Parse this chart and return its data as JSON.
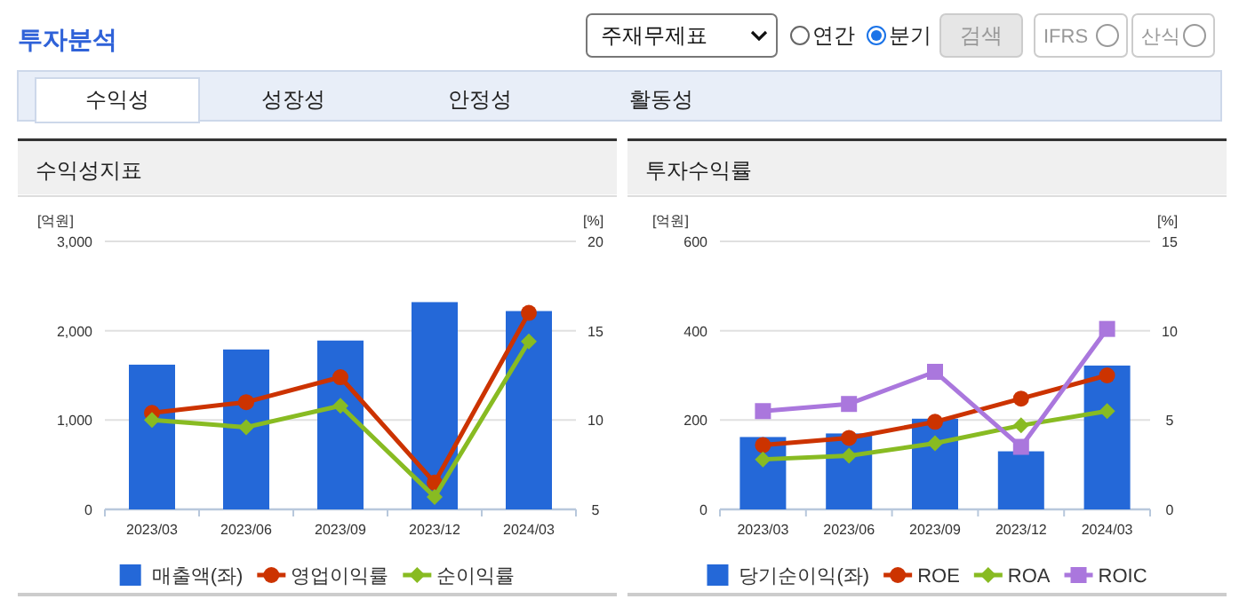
{
  "chart_data": [
    {
      "type": "bar",
      "title": "수익성지표",
      "ylabel": "[억원]",
      "y2label": "[%]",
      "annotations": [
        "투자분석",
        "주재무제표",
        "연간",
        "분기",
        "검색",
        "IFRS",
        "산식",
        "수익성",
        "성장성",
        "안정성",
        "활동성"
      ],
      "categories": [
        "2023/03",
        "2023/06",
        "2023/09",
        "2023/12",
        "2024/03"
      ],
      "ylim": [
        0,
        3000
      ],
      "yticks": [
        0,
        {
          "value": 1000,
          "label": "1,000"
        },
        {
          "value": 2000,
          "label": "2,000"
        },
        {
          "value": 3000,
          "label": "3,000"
        }
      ],
      "y2lim": [
        5,
        20
      ],
      "y2ticks": [
        5,
        10,
        15,
        20
      ],
      "grid": "y",
      "legend": "bottom",
      "series": [
        {
          "name": "매출액(좌)",
          "color": "#2468d8",
          "values": [
            1620,
            1790,
            1890,
            2320,
            2220
          ]
        },
        {
          "name": "영업이익률",
          "type": "line",
          "axis": "y2",
          "marker": "circle",
          "color": "#cc3300",
          "values": [
            10.4,
            11.0,
            12.4,
            6.5,
            16.0
          ]
        },
        {
          "name": "순이익률",
          "type": "line",
          "axis": "y2",
          "marker": "diamond",
          "color": "#88bb22",
          "values": [
            10.0,
            9.6,
            10.8,
            5.7,
            14.4
          ]
        }
      ]
    },
    {
      "type": "bar",
      "title": "투자수익률",
      "ylabel": "[억원]",
      "y2label": "[%]",
      "categories": [
        "2023/03",
        "2023/06",
        "2023/09",
        "2023/12",
        "2024/03"
      ],
      "ylim": [
        0,
        600
      ],
      "yticks": [
        0,
        200,
        400,
        600
      ],
      "y2lim": [
        0,
        15
      ],
      "y2ticks": [
        0,
        5,
        10,
        15
      ],
      "grid": "y",
      "legend": "bottom",
      "series": [
        {
          "name": "당기순이익(좌)",
          "color": "#2468d8",
          "values": [
            162,
            170,
            203,
            130,
            322
          ]
        },
        {
          "name": "ROE",
          "type": "line",
          "axis": "y2",
          "marker": "circle",
          "color": "#cc3300",
          "values": [
            3.6,
            4.0,
            4.9,
            6.2,
            7.5
          ]
        },
        {
          "name": "ROA",
          "type": "line",
          "axis": "y2",
          "marker": "diamond",
          "color": "#88bb22",
          "values": [
            2.8,
            3.0,
            3.7,
            4.7,
            5.5
          ]
        },
        {
          "name": "ROIC",
          "type": "line",
          "axis": "y2",
          "marker": "square",
          "color": "#aa77dd",
          "values": [
            5.5,
            5.9,
            7.7,
            3.5,
            10.1
          ]
        }
      ]
    }
  ]
}
